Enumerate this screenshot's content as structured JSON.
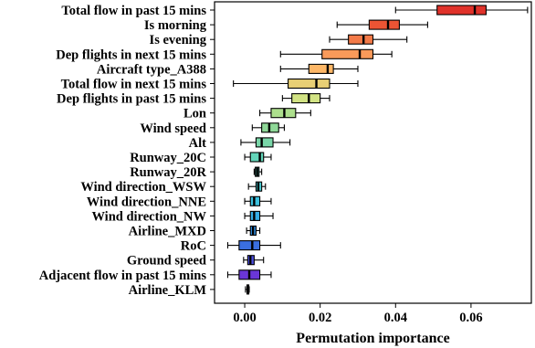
{
  "chart_data": {
    "type": "boxplot",
    "orientation": "horizontal",
    "title": "",
    "xlabel": "Permutation importance",
    "ylabel": "",
    "xlim": [
      -0.008,
      0.076
    ],
    "xticks": [
      0.0,
      0.02,
      0.04,
      0.06
    ],
    "xtick_labels": [
      "0.00",
      "0.02",
      "0.04",
      "0.06"
    ],
    "grid": false,
    "items": [
      {
        "label": "Total flow in past 15 mins",
        "whislo": 0.04,
        "q1": 0.051,
        "med": 0.061,
        "q3": 0.064,
        "whishi": 0.075,
        "color": "#e0322a"
      },
      {
        "label": "Is morning",
        "whislo": 0.0245,
        "q1": 0.033,
        "med": 0.038,
        "q3": 0.041,
        "whishi": 0.0485,
        "color": "#ec5434"
      },
      {
        "label": "Is evening",
        "whislo": 0.0225,
        "q1": 0.0275,
        "med": 0.0315,
        "q3": 0.034,
        "whishi": 0.043,
        "color": "#f37a48"
      },
      {
        "label": "Dep flights in next 15 mins",
        "whislo": 0.0095,
        "q1": 0.0205,
        "med": 0.0305,
        "q3": 0.034,
        "whishi": 0.039,
        "color": "#f99a5a"
      },
      {
        "label": "Aircraft type_A388",
        "whislo": 0.0095,
        "q1": 0.017,
        "med": 0.022,
        "q3": 0.0235,
        "whishi": 0.03,
        "color": "#fdb767"
      },
      {
        "label": "Total flow in next 15 mins",
        "whislo": -0.003,
        "q1": 0.0115,
        "med": 0.019,
        "q3": 0.0225,
        "whishi": 0.03,
        "color": "#e8cf75"
      },
      {
        "label": "Dep flights in past 15 mins",
        "whislo": 0.01,
        "q1": 0.0125,
        "med": 0.017,
        "q3": 0.02,
        "whishi": 0.0225,
        "color": "#d2e384"
      },
      {
        "label": "Lon",
        "whislo": 0.004,
        "q1": 0.007,
        "med": 0.0105,
        "q3": 0.0135,
        "whishi": 0.0175,
        "color": "#addf8d"
      },
      {
        "label": "Wind speed",
        "whislo": 0.002,
        "q1": 0.0045,
        "med": 0.0065,
        "q3": 0.009,
        "whishi": 0.0105,
        "color": "#8fd898"
      },
      {
        "label": "Alt",
        "whislo": -0.001,
        "q1": 0.003,
        "med": 0.0045,
        "q3": 0.0075,
        "whishi": 0.012,
        "color": "#79d6a8"
      },
      {
        "label": "Runway_20C",
        "whislo": 0.0,
        "q1": 0.0015,
        "med": 0.004,
        "q3": 0.005,
        "whishi": 0.007,
        "color": "#63d5b9"
      },
      {
        "label": "Runway_20R",
        "whislo": 0.0025,
        "q1": 0.0028,
        "med": 0.0033,
        "q3": 0.0038,
        "whishi": 0.0045,
        "color": "#55d4c4"
      },
      {
        "label": "Wind direction_WSW",
        "whislo": 0.001,
        "q1": 0.003,
        "med": 0.0036,
        "q3": 0.0045,
        "whishi": 0.0055,
        "color": "#4ccdd3"
      },
      {
        "label": "Wind direction_NNE",
        "whislo": 0.0,
        "q1": 0.0015,
        "med": 0.0025,
        "q3": 0.004,
        "whishi": 0.007,
        "color": "#3ec2df"
      },
      {
        "label": "Wind direction_NW",
        "whislo": 0.0,
        "q1": 0.0015,
        "med": 0.0025,
        "q3": 0.004,
        "whishi": 0.0075,
        "color": "#36ade6"
      },
      {
        "label": "Airline_MXD",
        "whislo": 0.0005,
        "q1": 0.0015,
        "med": 0.0022,
        "q3": 0.003,
        "whishi": 0.004,
        "color": "#3291e5"
      },
      {
        "label": "RoC",
        "whislo": -0.0045,
        "q1": -0.0015,
        "med": 0.002,
        "q3": 0.004,
        "whishi": 0.0095,
        "color": "#3a6fe0"
      },
      {
        "label": "Ground speed",
        "whislo": -0.0003,
        "q1": 0.0008,
        "med": 0.0015,
        "q3": 0.0025,
        "whishi": 0.005,
        "color": "#4a4ddd"
      },
      {
        "label": "Adjacent flow in past 15 mins",
        "whislo": -0.0045,
        "q1": -0.0015,
        "med": 0.0012,
        "q3": 0.004,
        "whishi": 0.007,
        "color": "#6a36d8"
      },
      {
        "label": "Airline_KLM",
        "whislo": 0.0002,
        "q1": 0.0006,
        "med": 0.0008,
        "q3": 0.001,
        "whishi": 0.0012,
        "color": "#7b2fd4"
      }
    ]
  }
}
